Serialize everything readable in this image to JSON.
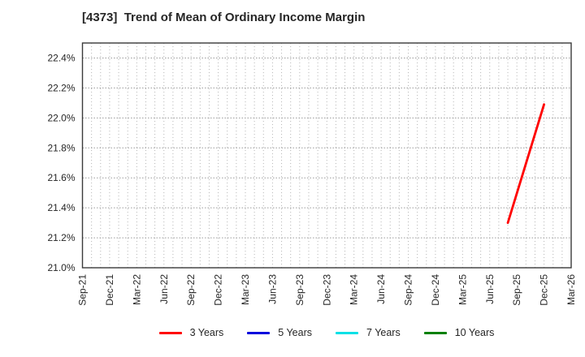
{
  "title": "[4373]  Trend of Mean of Ordinary Income Margin",
  "chart_data": {
    "type": "line",
    "title": "[4373]  Trend of Mean of Ordinary Income Margin",
    "xlabel": "",
    "ylabel": "",
    "grid": true,
    "legend_position": "bottom-center",
    "x_axis": {
      "unit": "months",
      "months_total": 54,
      "minor_grid_every_months": 1,
      "tick_every_months": 3,
      "tick_labels": [
        "Sep-21",
        "Dec-21",
        "Mar-22",
        "Jun-22",
        "Sep-22",
        "Dec-22",
        "Mar-23",
        "Jun-23",
        "Sep-23",
        "Dec-23",
        "Mar-24",
        "Jun-24",
        "Sep-24",
        "Dec-24",
        "Mar-25",
        "Jun-25",
        "Sep-25",
        "Dec-25",
        "Mar-26"
      ]
    },
    "y_axis": {
      "min": 21.0,
      "max": 22.5,
      "tick_values": [
        21.0,
        21.2,
        21.4,
        21.6,
        21.8,
        22.0,
        22.2,
        22.4
      ],
      "tick_labels": [
        "21.0%",
        "21.2%",
        "21.4%",
        "21.6%",
        "21.8%",
        "22.0%",
        "22.2%",
        "22.4%"
      ]
    },
    "series": [
      {
        "name": "3 Years",
        "color": "#ff0000",
        "points": [
          {
            "x_label": "Aug-25",
            "month_index": 47,
            "value": 21.3
          },
          {
            "x_label": "Dec-25",
            "month_index": 51,
            "value": 22.09
          }
        ]
      },
      {
        "name": "5 Years",
        "color": "#0000dd",
        "points": []
      },
      {
        "name": "7 Years",
        "color": "#00e0e6",
        "points": []
      },
      {
        "name": "10 Years",
        "color": "#008000",
        "points": []
      }
    ]
  }
}
